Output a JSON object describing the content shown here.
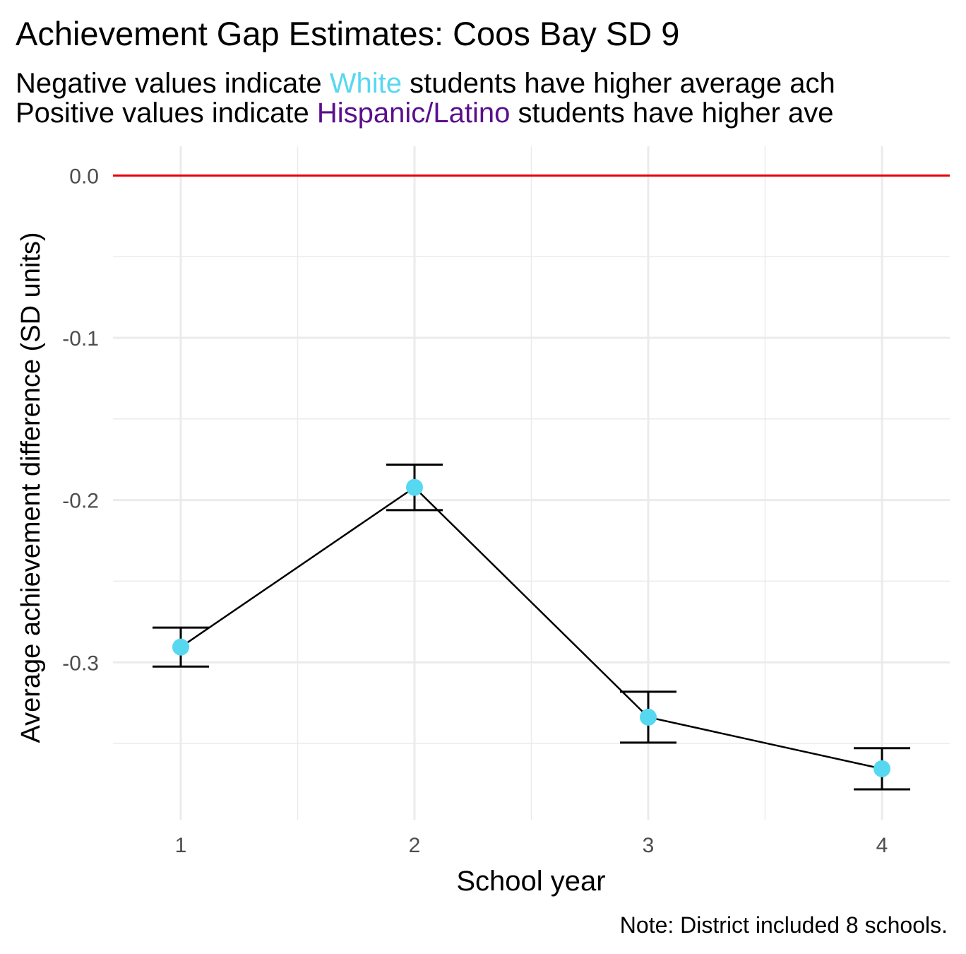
{
  "chart_data": {
    "type": "errorbar-line",
    "title": "Achievement Gap Estimates: Coos Bay SD 9",
    "subtitle_lines": [
      {
        "before": "Negative values indicate ",
        "group": "White",
        "after": " students have higher average ach",
        "color": "#56d8f0"
      },
      {
        "before": "Positive values indicate ",
        "group": "Hispanic/Latino",
        "after": " students have higher ave",
        "color": "#5a0f8c"
      }
    ],
    "x_label": "School year",
    "y_label": "Average achievement difference (SD units)",
    "caption": "Note: District included 8 schools.",
    "x": [
      1,
      2,
      3,
      4
    ],
    "values": [
      -0.2906,
      -0.1922,
      -0.3338,
      -0.3656
    ],
    "errors": [
      0.012,
      0.014,
      0.0157,
      0.0127
    ],
    "point_color": "#56d8f0",
    "line_color": "#000000",
    "xlim": [
      0.71,
      4.29
    ],
    "ylim": [
      -0.397,
      0.018
    ],
    "xticks": [
      1,
      2,
      3,
      4
    ],
    "yticks": [
      {
        "value": 0,
        "label": "0.0"
      },
      -0.1,
      -0.2,
      -0.3
    ],
    "xminor": [
      1.5,
      2.5,
      3.5
    ],
    "yminor": [
      -0.05,
      -0.15,
      -0.25,
      -0.35
    ],
    "reference_line": {
      "value": 0,
      "color": "#e8000b"
    },
    "grid": true
  }
}
